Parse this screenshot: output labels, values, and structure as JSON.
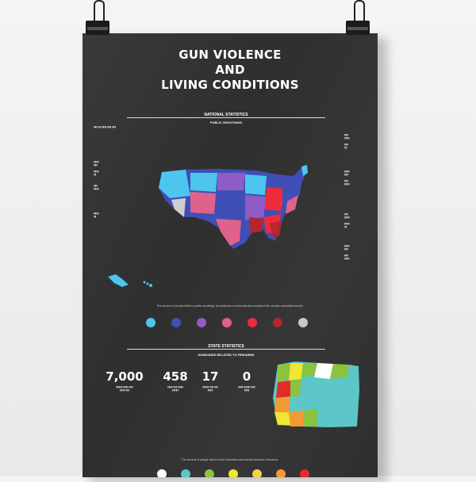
{
  "poster": {
    "title_line1": "GUN VIOLENCE",
    "title_line2": "AND",
    "title_line3": "LIVING CONDITIONS",
    "national_heading": "NATIONAL STATISTICS",
    "national_subheading": "PUBLIC SHOOTINGS",
    "state_heading": "STATE STATISTICS",
    "state_subheading": "HOMICIDES RELATED TO FIREARMS",
    "national_caption": "The amount of people killed in public shootings, for purposes of continuity this includes if the shooter committed suicide.",
    "state_caption": "The amount of people killed in both homicides and suicide because of firearms.",
    "stats": [
      {
        "value": "7,000"
      },
      {
        "value": "458"
      },
      {
        "value": "17"
      },
      {
        "value": "0"
      }
    ],
    "national_legend_colors": [
      "#4dc6ef",
      "#3f4fb5",
      "#8f5bc4",
      "#e0628a",
      "#ee2c39",
      "#b3262d",
      "#c9c9c9"
    ],
    "state_legend_colors": [
      "#ffffff",
      "#5cc6c8",
      "#89c340",
      "#f0e633",
      "#f2d24d",
      "#f39a34",
      "#e22b2b"
    ]
  }
}
